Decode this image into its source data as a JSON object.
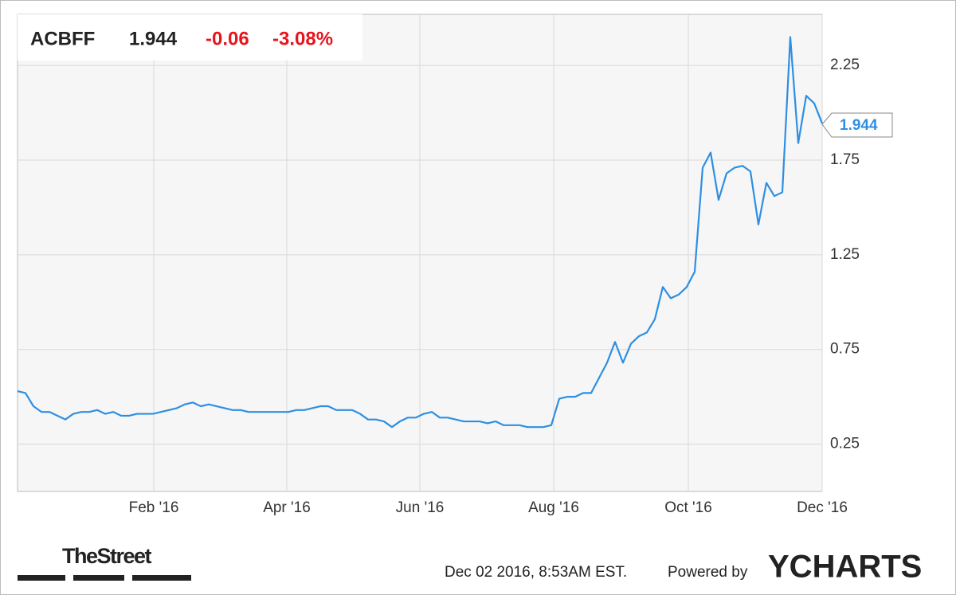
{
  "header": {
    "ticker": "ACBFF",
    "price": "1.944",
    "change": "-0.06",
    "change_percent": "-3.08%"
  },
  "chart_data": {
    "type": "line",
    "xlim": [
      0,
      101
    ],
    "xticks": [
      {
        "value": 17.1,
        "label": "Feb '16"
      },
      {
        "value": 33.8,
        "label": "Apr '16"
      },
      {
        "value": 50.5,
        "label": "Jun '16"
      },
      {
        "value": 67.3,
        "label": "Aug '16"
      },
      {
        "value": 84.2,
        "label": "Oct '16"
      },
      {
        "value": 101,
        "label": "Dec '16"
      }
    ],
    "ylim": [
      0,
      2.52
    ],
    "yticks": [
      0.25,
      0.75,
      1.25,
      1.75,
      2.25
    ],
    "grid": true,
    "series": [
      {
        "name": "ACBFF",
        "color": "#2e8fe2",
        "values": [
          0.53,
          0.52,
          0.45,
          0.42,
          0.42,
          0.4,
          0.38,
          0.41,
          0.42,
          0.42,
          0.43,
          0.41,
          0.42,
          0.4,
          0.4,
          0.41,
          0.41,
          0.41,
          0.42,
          0.43,
          0.44,
          0.46,
          0.47,
          0.45,
          0.46,
          0.45,
          0.44,
          0.43,
          0.43,
          0.42,
          0.42,
          0.42,
          0.42,
          0.42,
          0.42,
          0.43,
          0.43,
          0.44,
          0.45,
          0.45,
          0.43,
          0.43,
          0.43,
          0.41,
          0.38,
          0.38,
          0.37,
          0.34,
          0.37,
          0.39,
          0.39,
          0.41,
          0.42,
          0.39,
          0.39,
          0.38,
          0.37,
          0.37,
          0.37,
          0.36,
          0.37,
          0.35,
          0.35,
          0.35,
          0.34,
          0.34,
          0.34,
          0.35,
          0.49,
          0.5,
          0.5,
          0.52,
          0.52,
          0.6,
          0.68,
          0.79,
          0.68,
          0.78,
          0.82,
          0.84,
          0.91,
          1.08,
          1.02,
          1.04,
          1.08,
          1.16,
          1.71,
          1.79,
          1.54,
          1.68,
          1.71,
          1.72,
          1.69,
          1.41,
          1.63,
          1.56,
          1.58,
          2.4,
          1.84,
          2.09,
          2.05,
          1.944
        ]
      }
    ]
  },
  "footer": {
    "brand": "TheStreet",
    "timestamp": "Dec 02 2016, 8:53AM EST.",
    "powered": "Powered by",
    "logo": "YCHARTS"
  }
}
